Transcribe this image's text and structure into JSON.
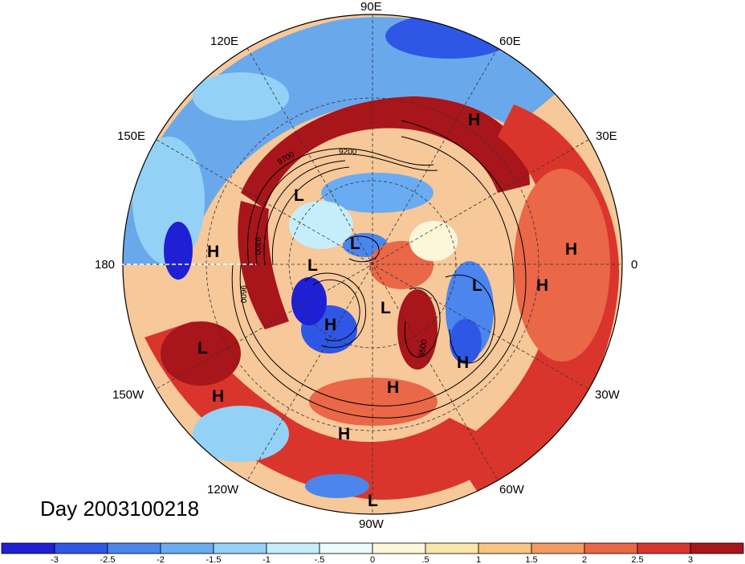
{
  "title": "Day 2003100218",
  "longitude_labels": [
    "90E",
    "60E",
    "30E",
    "0",
    "30W",
    "60W",
    "90W",
    "120W",
    "150W",
    "180",
    "150E",
    "120E"
  ],
  "pressure_centers": [
    "H",
    "H",
    "H",
    "H",
    "H",
    "H",
    "H",
    "H",
    "H",
    "L",
    "L",
    "L",
    "L",
    "L",
    "L",
    "L"
  ],
  "contour_labels": [
    "9700",
    "9600",
    "9300",
    "9500",
    "9200"
  ],
  "colorbar": {
    "colors": [
      "#1f1fd6",
      "#2f57e6",
      "#4a86ee",
      "#6aacf2",
      "#93d2f6",
      "#c6eefa",
      "#eafafd",
      "#fdf7da",
      "#fbe6aa",
      "#f7c483",
      "#f29a62",
      "#ea6747",
      "#d9352c",
      "#a8151a"
    ],
    "tick_labels": [
      "-3",
      "-2.5",
      "-2",
      "-1.5",
      "-1",
      "-.5",
      "0",
      ".5",
      "1",
      "1.5",
      "2",
      "2.5",
      "3"
    ]
  }
}
